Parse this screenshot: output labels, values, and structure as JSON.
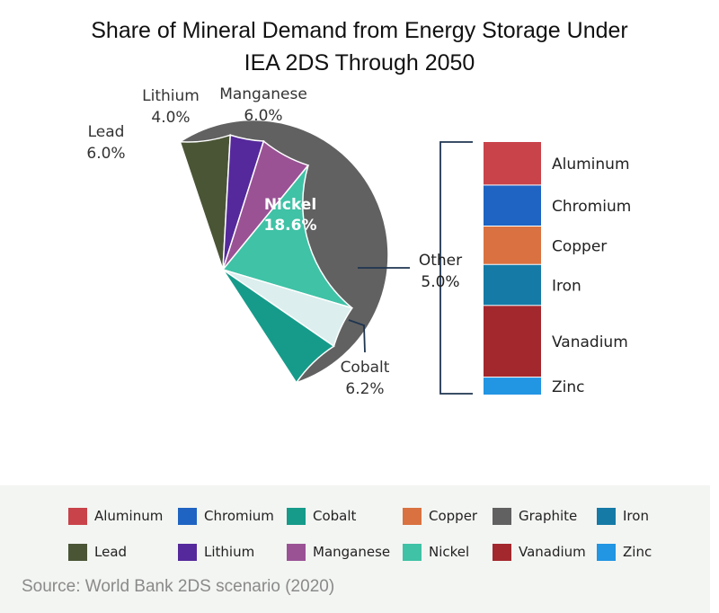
{
  "title_line1": "Share of Mineral Demand from Energy Storage Under",
  "title_line2": "IEA 2DS Through 2050",
  "source": "Source: World Bank 2DS scenario (2020)",
  "colors": {
    "Aluminum": "#c9434a",
    "Chromium": "#1f64c2",
    "Cobalt": "#169b8a",
    "Copper": "#d97240",
    "Graphite": "#616161",
    "Iron": "#167aa6",
    "Lead": "#4a5536",
    "Lithium": "#55299c",
    "Manganese": "#9a5295",
    "Nickel": "#3fc2a6",
    "Vanadium": "#a3282e",
    "Zinc": "#2295e3",
    "Other": "#dceeee"
  },
  "chart_data": {
    "type": "pie",
    "title": "Share of Mineral Demand from Energy Storage Under IEA 2DS Through 2050",
    "slices": [
      {
        "name": "Graphite",
        "value": 53.8,
        "label": "53.8%"
      },
      {
        "name": "Lead",
        "value": 6.0,
        "label": "6.0%"
      },
      {
        "name": "Lithium",
        "value": 4.0,
        "label": "4.0%"
      },
      {
        "name": "Manganese",
        "value": 6.0,
        "label": "6.0%"
      },
      {
        "name": "Nickel",
        "value": 18.6,
        "label": "18.6%"
      },
      {
        "name": "Other",
        "value": 5.0,
        "label": "5.0%"
      },
      {
        "name": "Cobalt",
        "value": 6.2,
        "label": "6.2%"
      }
    ],
    "other_breakdown": {
      "name": "Other",
      "total": 5.0,
      "components": [
        {
          "name": "Aluminum",
          "share": 0.17
        },
        {
          "name": "Chromium",
          "share": 0.16
        },
        {
          "name": "Copper",
          "share": 0.15
        },
        {
          "name": "Iron",
          "share": 0.16
        },
        {
          "name": "Vanadium",
          "share": 0.28
        },
        {
          "name": "Zinc",
          "share": 0.07
        }
      ]
    },
    "legend": {
      "placement": "bottom",
      "entries": [
        "Aluminum",
        "Chromium",
        "Cobalt",
        "Copper",
        "Graphite",
        "Iron",
        "Lead",
        "Lithium",
        "Manganese",
        "Nickel",
        "Vanadium",
        "Zinc"
      ]
    }
  }
}
